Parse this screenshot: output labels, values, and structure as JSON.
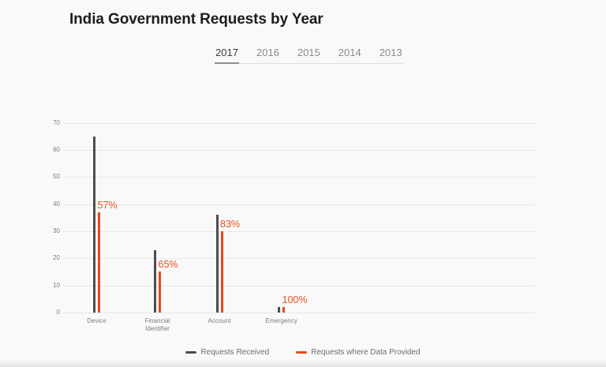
{
  "header": {
    "title": "India Government Requests by Year"
  },
  "tabs": {
    "items": [
      {
        "label": "2017",
        "active": true
      },
      {
        "label": "2016",
        "active": false
      },
      {
        "label": "2015",
        "active": false
      },
      {
        "label": "2014",
        "active": false
      },
      {
        "label": "2013",
        "active": false
      }
    ]
  },
  "chart_data": {
    "type": "bar",
    "title": "India Government Requests by Year",
    "categories": [
      "Device",
      "Financial Identifier",
      "Account",
      "Emergency"
    ],
    "series": [
      {
        "name": "Requests Received",
        "color": "#4d4d4f",
        "values": [
          65,
          23,
          36,
          2
        ]
      },
      {
        "name": "Requests where Data Provided",
        "color": "#e8481c",
        "values": [
          37,
          15,
          30,
          2
        ]
      }
    ],
    "percent_labels": [
      "57%",
      "65%",
      "83%",
      "100%"
    ],
    "percent_label_color": "#e8501e",
    "xlabel": "",
    "ylabel": "",
    "ylim": [
      0,
      70
    ],
    "yticks": [
      0,
      10,
      20,
      30,
      40,
      50,
      60,
      70
    ],
    "grid": true,
    "legend_position": "bottom"
  },
  "colors": {
    "background": "#f9f9f9",
    "grid": "#e7e7e7",
    "axis_text": "#7d7d82",
    "title": "#1d1d1f",
    "tab_active": "#3a3a3c",
    "tab_inactive": "#8a8a8e",
    "tab_rule": "#dcdcdc",
    "tab_active_rule": "#8e8e93"
  }
}
